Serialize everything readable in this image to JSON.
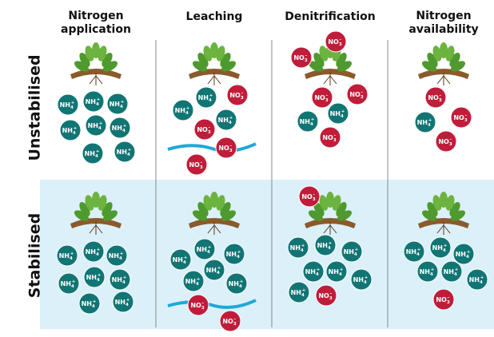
{
  "columns": [
    {
      "lines": [
        "Nitrogen",
        "application"
      ]
    },
    {
      "lines": [
        "Leaching"
      ]
    },
    {
      "lines": [
        "Denitrification"
      ]
    },
    {
      "lines": [
        "Nitrogen",
        "availability"
      ]
    }
  ],
  "rows": [
    {
      "label": "Unstabilised"
    },
    {
      "label": "Stabilised"
    }
  ],
  "ions": {
    "nh4": {
      "symbol": "NH",
      "sub": "4",
      "sup": "+"
    },
    "no3": {
      "symbol": "NO",
      "sub": "3",
      "sup": "-"
    }
  }
}
